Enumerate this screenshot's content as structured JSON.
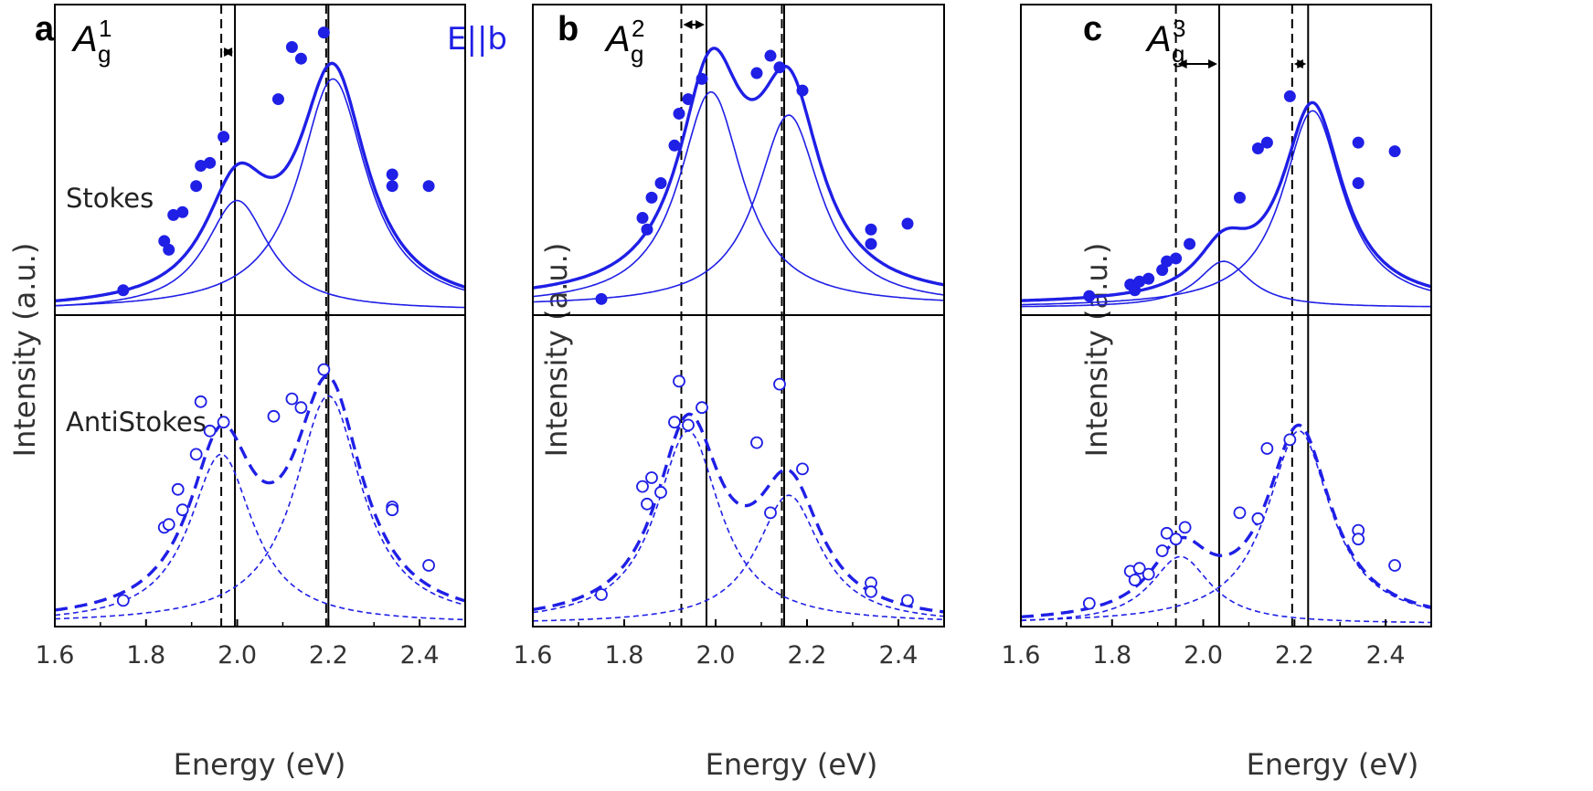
{
  "colors": {
    "data": "#1f1fe6",
    "frame": "#000000",
    "text": "#333333"
  },
  "chart_data": [
    {
      "type": "scatter",
      "panel": "a",
      "mode": "A",
      "mode_sub": "g",
      "mode_sup": "1",
      "polarization": "E||b",
      "xlabel": "Energy (eV)",
      "ylabel": "Intensity (a.u.)",
      "xlim": [
        1.6,
        2.5
      ],
      "xticks": [
        "1.6",
        "1.8",
        "2.0",
        "2.2",
        "2.4"
      ],
      "upper_label": "Stokes",
      "lower_label": "AntiStokes",
      "vlines": {
        "dashed": [
          1.965,
          2.195
        ],
        "solid": [
          1.995,
          2.2
        ]
      },
      "arrows": [
        [
          1.965,
          1.995
        ]
      ],
      "stokes": {
        "points": [
          [
            1.75,
            0.07
          ],
          [
            1.84,
            0.24
          ],
          [
            1.85,
            0.21
          ],
          [
            1.86,
            0.33
          ],
          [
            1.88,
            0.34
          ],
          [
            1.91,
            0.43
          ],
          [
            1.92,
            0.5
          ],
          [
            1.94,
            0.51
          ],
          [
            1.97,
            0.6
          ],
          [
            2.09,
            0.73
          ],
          [
            2.12,
            0.91
          ],
          [
            2.14,
            0.87
          ],
          [
            2.19,
            0.96
          ],
          [
            2.34,
            0.47
          ],
          [
            2.34,
            0.43
          ],
          [
            2.42,
            0.43
          ]
        ],
        "peaks": [
          {
            "center": 2.0,
            "height": 0.38,
            "width": 0.085
          },
          {
            "center": 2.21,
            "height": 0.8,
            "width": 0.09
          }
        ],
        "baseline": 0.0
      },
      "antistokes": {
        "points": [
          [
            1.75,
            0.08
          ],
          [
            1.84,
            0.33
          ],
          [
            1.85,
            0.34
          ],
          [
            1.87,
            0.46
          ],
          [
            1.88,
            0.39
          ],
          [
            1.91,
            0.58
          ],
          [
            1.92,
            0.76
          ],
          [
            1.94,
            0.66
          ],
          [
            1.97,
            0.69
          ],
          [
            2.08,
            0.71
          ],
          [
            2.12,
            0.77
          ],
          [
            2.14,
            0.74
          ],
          [
            2.19,
            0.87
          ],
          [
            2.34,
            0.4
          ],
          [
            2.34,
            0.39
          ],
          [
            2.42,
            0.2
          ]
        ],
        "peaks": [
          {
            "center": 1.965,
            "height": 0.58,
            "width": 0.085
          },
          {
            "center": 2.2,
            "height": 0.78,
            "width": 0.09
          }
        ],
        "baseline": 0.0
      }
    },
    {
      "type": "scatter",
      "panel": "b",
      "mode": "A",
      "mode_sub": "g",
      "mode_sup": "2",
      "polarization": "",
      "xlabel": "Energy (eV)",
      "ylabel": "Intensity (a.u.)",
      "xlim": [
        1.6,
        2.5
      ],
      "xticks": [
        "1.6",
        "1.8",
        "2.0",
        "2.2",
        "2.4"
      ],
      "upper_label": "",
      "lower_label": "",
      "vlines": {
        "dashed": [
          1.925,
          2.145
        ],
        "solid": [
          1.98,
          2.15
        ]
      },
      "arrows": [
        [
          1.925,
          1.98
        ]
      ],
      "stokes": {
        "points": [
          [
            1.75,
            0.04
          ],
          [
            1.84,
            0.32
          ],
          [
            1.85,
            0.28
          ],
          [
            1.86,
            0.39
          ],
          [
            1.88,
            0.44
          ],
          [
            1.91,
            0.57
          ],
          [
            1.92,
            0.68
          ],
          [
            1.94,
            0.73
          ],
          [
            1.97,
            0.8
          ],
          [
            2.09,
            0.82
          ],
          [
            2.12,
            0.88
          ],
          [
            2.14,
            0.84
          ],
          [
            2.19,
            0.76
          ],
          [
            2.34,
            0.28
          ],
          [
            2.34,
            0.23
          ],
          [
            2.42,
            0.3
          ]
        ],
        "peaks": [
          {
            "center": 1.99,
            "height": 0.74,
            "width": 0.085
          },
          {
            "center": 2.16,
            "height": 0.66,
            "width": 0.085
          }
        ],
        "baseline": 0.03
      },
      "antistokes": {
        "points": [
          [
            1.75,
            0.1
          ],
          [
            1.84,
            0.47
          ],
          [
            1.85,
            0.41
          ],
          [
            1.86,
            0.5
          ],
          [
            1.88,
            0.45
          ],
          [
            1.91,
            0.69
          ],
          [
            1.92,
            0.83
          ],
          [
            1.94,
            0.68
          ],
          [
            1.97,
            0.74
          ],
          [
            2.09,
            0.62
          ],
          [
            2.12,
            0.38
          ],
          [
            2.14,
            0.82
          ],
          [
            2.19,
            0.53
          ],
          [
            2.34,
            0.14
          ],
          [
            2.34,
            0.11
          ],
          [
            2.42,
            0.08
          ]
        ],
        "peaks": [
          {
            "center": 1.94,
            "height": 0.66,
            "width": 0.085
          },
          {
            "center": 2.16,
            "height": 0.44,
            "width": 0.085
          }
        ],
        "baseline": 0.0
      }
    },
    {
      "type": "scatter",
      "panel": "c",
      "mode": "A",
      "mode_sub": "g",
      "mode_sup": "3",
      "polarization": "",
      "xlabel": "Energy (eV)",
      "ylabel": "Intensity (a.u.)",
      "xlim": [
        1.6,
        2.5
      ],
      "xticks": [
        "1.6",
        "1.8",
        "2.0",
        "2.2",
        "2.4"
      ],
      "upper_label": "",
      "lower_label": "",
      "vlines": {
        "dashed": [
          1.94,
          2.195
        ],
        "solid": [
          2.035,
          2.23
        ]
      },
      "arrows": [
        [
          1.94,
          2.035
        ],
        [
          2.195,
          2.23
        ]
      ],
      "stokes": {
        "points": [
          [
            1.75,
            0.05
          ],
          [
            1.84,
            0.09
          ],
          [
            1.85,
            0.07
          ],
          [
            1.86,
            0.1
          ],
          [
            1.88,
            0.11
          ],
          [
            1.91,
            0.14
          ],
          [
            1.92,
            0.17
          ],
          [
            1.94,
            0.18
          ],
          [
            1.97,
            0.23
          ],
          [
            2.08,
            0.39
          ],
          [
            2.12,
            0.56
          ],
          [
            2.14,
            0.58
          ],
          [
            2.19,
            0.74
          ],
          [
            2.34,
            0.58
          ],
          [
            2.34,
            0.44
          ],
          [
            2.42,
            0.55
          ]
        ],
        "peaks": [
          {
            "center": 2.045,
            "height": 0.16,
            "width": 0.07
          },
          {
            "center": 2.24,
            "height": 0.68,
            "width": 0.08
          }
        ],
        "baseline": 0.02
      },
      "antistokes": {
        "points": [
          [
            1.75,
            0.07
          ],
          [
            1.84,
            0.18
          ],
          [
            1.85,
            0.15
          ],
          [
            1.86,
            0.19
          ],
          [
            1.88,
            0.17
          ],
          [
            1.91,
            0.25
          ],
          [
            1.92,
            0.31
          ],
          [
            1.94,
            0.29
          ],
          [
            1.96,
            0.33
          ],
          [
            2.08,
            0.38
          ],
          [
            2.12,
            0.36
          ],
          [
            2.14,
            0.6
          ],
          [
            2.19,
            0.63
          ],
          [
            2.34,
            0.32
          ],
          [
            2.34,
            0.29
          ],
          [
            2.42,
            0.2
          ]
        ],
        "peaks": [
          {
            "center": 1.95,
            "height": 0.23,
            "width": 0.08
          },
          {
            "center": 2.21,
            "height": 0.66,
            "width": 0.085
          }
        ],
        "baseline": 0.0
      }
    }
  ]
}
